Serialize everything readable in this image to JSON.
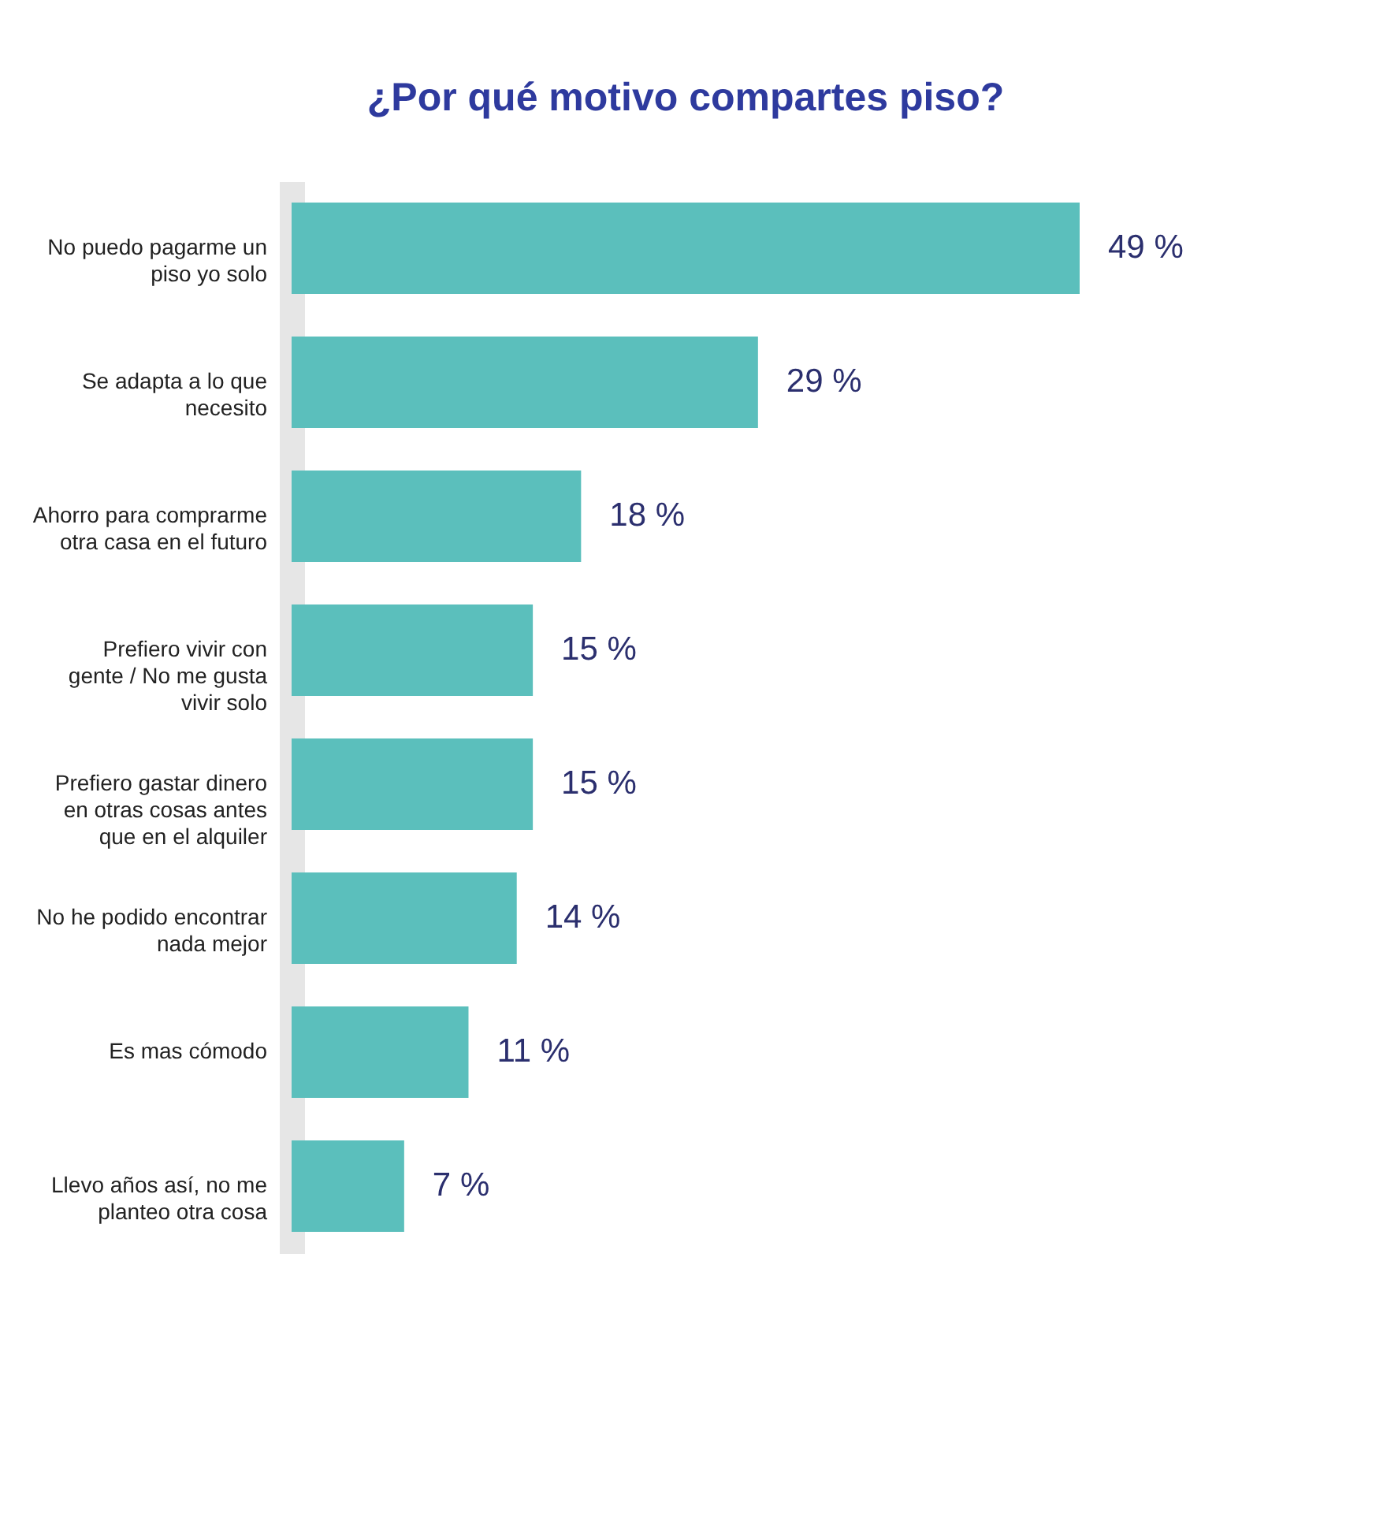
{
  "chart_data": {
    "type": "bar",
    "orientation": "horizontal",
    "title": "¿Por qué motivo compartes piso?",
    "categories": [
      "No puedo pagarme un piso yo solo",
      "Se adapta a lo que necesito",
      "Ahorro para comprarme otra casa en el futuro",
      "Prefiero vivir con gente / No me gusta vivir solo",
      "Prefiero gastar dinero en otras cosas antes que en el alquiler",
      "No he podido encontrar nada mejor",
      "Es mas cómodo",
      "Llevo años así, no me planteo otra cosa"
    ],
    "values": [
      49,
      29,
      18,
      15,
      15,
      14,
      11,
      7
    ],
    "value_labels": [
      "49 %",
      "29 %",
      "18 %",
      "15 %",
      "15 %",
      "14 %",
      "11 %",
      "7 %"
    ],
    "color": "#5bbfbc",
    "tick_labels": "y"
  }
}
